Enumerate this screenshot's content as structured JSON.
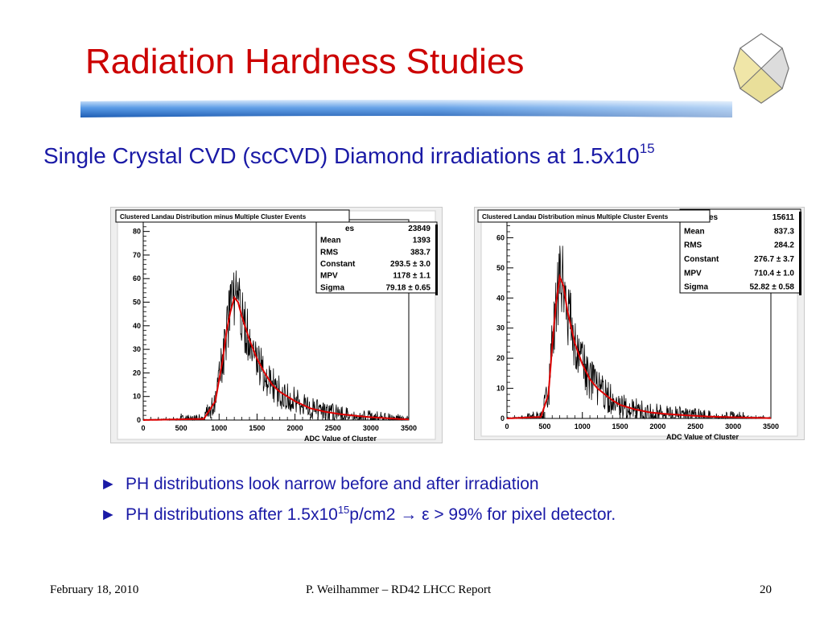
{
  "slide": {
    "title": "Radiation Hardness Studies",
    "subtitle_main": "Single Crystal CVD (scCVD) Diamond irradiations at 1.5x10",
    "subtitle_sup": "15",
    "bullets": [
      {
        "marker": "►",
        "text": "PH distributions look narrow before and after irradiation"
      },
      {
        "marker": "►",
        "text_pre": "PH distributions after 1.5x10",
        "text_sup": "15",
        "text_post": "p/cm2 → ε > 99% for pixel detector."
      }
    ],
    "footer": {
      "date": "February 18, 2010",
      "author": "P. Weilhammer – RD42 LHCC Report",
      "page": "20"
    }
  },
  "colors": {
    "title": "#cc0000",
    "subtitle": "#1a1aa6",
    "fit": "#dd0000",
    "histogram": "#000000"
  },
  "chart_data": [
    {
      "type": "histogram",
      "title": "Clustered Landau Distribution minus Multiple Cluster Events",
      "xlabel": "ADC Value of Cluster",
      "ylabel": "",
      "xlim": [
        0,
        3500
      ],
      "ylim": [
        0,
        85
      ],
      "xticks": [
        0,
        500,
        1000,
        1500,
        2000,
        2500,
        3000,
        3500
      ],
      "yticks": [
        0,
        10,
        20,
        30,
        40,
        50,
        60,
        70,
        80
      ],
      "stats": {
        "entries_label": "es",
        "entries": "23849",
        "rows": [
          {
            "label": "Mean",
            "value": "1393"
          },
          {
            "label": "RMS",
            "value": "383.7"
          },
          {
            "label": "Constant",
            "value": "293.5 ± 3.0"
          },
          {
            "label": "MPV",
            "value": "1178 ± 1.1"
          },
          {
            "label": "Sigma",
            "value": "79.18 ± 0.65"
          }
        ]
      },
      "series": [
        {
          "x": [
            0,
            800,
            950,
            1050,
            1100,
            1150,
            1200,
            1250,
            1300,
            1400,
            1500,
            1600,
            1700,
            1800,
            2000,
            2200,
            2400,
            2600,
            2800,
            3000,
            3200,
            3400,
            3500
          ],
          "y": [
            0,
            0.5,
            8,
            26,
            38,
            46,
            52,
            50,
            44,
            34,
            26,
            20,
            15,
            12,
            8,
            5,
            3.5,
            2.5,
            1.8,
            1.2,
            0.8,
            0.4,
            0.3
          ]
        }
      ]
    },
    {
      "type": "histogram",
      "title": "Clustered Landau Distribution minus Multiple Cluster Events",
      "xlabel": "ADC Value of Cluster",
      "ylabel": "",
      "xlim": [
        0,
        3500
      ],
      "ylim": [
        0,
        66
      ],
      "xticks": [
        0,
        500,
        1000,
        1500,
        2000,
        2500,
        3000,
        3500
      ],
      "yticks": [
        0,
        10,
        20,
        30,
        40,
        50,
        60
      ],
      "stats": {
        "entries_label": "es",
        "entries": "15611",
        "rows": [
          {
            "label": "Mean",
            "value": "837.3"
          },
          {
            "label": "RMS",
            "value": "284.2"
          },
          {
            "label": "Constant",
            "value": "276.7 ± 3.7"
          },
          {
            "label": "MPV",
            "value": "710.4 ± 1.0"
          },
          {
            "label": "Sigma",
            "value": "52.82 ± 0.58"
          }
        ]
      },
      "series": [
        {
          "x": [
            0,
            450,
            550,
            600,
            650,
            700,
            750,
            800,
            900,
            1000,
            1100,
            1200,
            1300,
            1400,
            1500,
            1700,
            1900,
            2100,
            2400,
            2700,
            3000,
            3300,
            3500
          ],
          "y": [
            0,
            0.5,
            8,
            24,
            38,
            47,
            44,
            36,
            25,
            18,
            13,
            10,
            8,
            6,
            4.5,
            3,
            2,
            1.5,
            1,
            0.6,
            0.4,
            0.2,
            0.1
          ]
        }
      ]
    }
  ]
}
